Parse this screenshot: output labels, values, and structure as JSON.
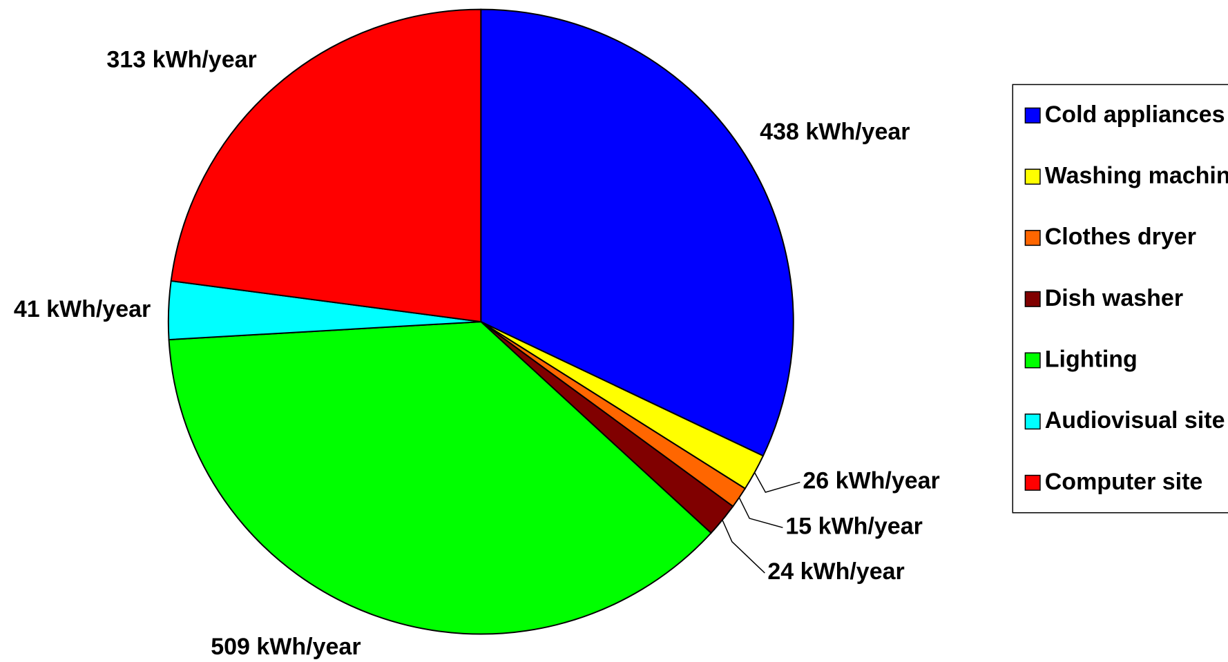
{
  "chart_data": {
    "type": "pie",
    "categories": [
      "Cold appliances",
      "Washing machine",
      "Clothes dryer",
      "Dish washer",
      "Lighting",
      "Audiovisual site",
      "Computer site"
    ],
    "values": [
      438,
      26,
      15,
      24,
      509,
      41,
      313
    ],
    "value_labels": [
      "438 kWh/year",
      "26 kWh/year",
      "15 kWh/year",
      "24 kWh/year",
      "509 kWh/year",
      "41 kWh/year",
      "313 kWh/year"
    ],
    "colors": [
      "#0000ff",
      "#ffff00",
      "#ff6600",
      "#800000",
      "#00ff00",
      "#00ffff",
      "#ff0000"
    ],
    "legend": "right"
  }
}
